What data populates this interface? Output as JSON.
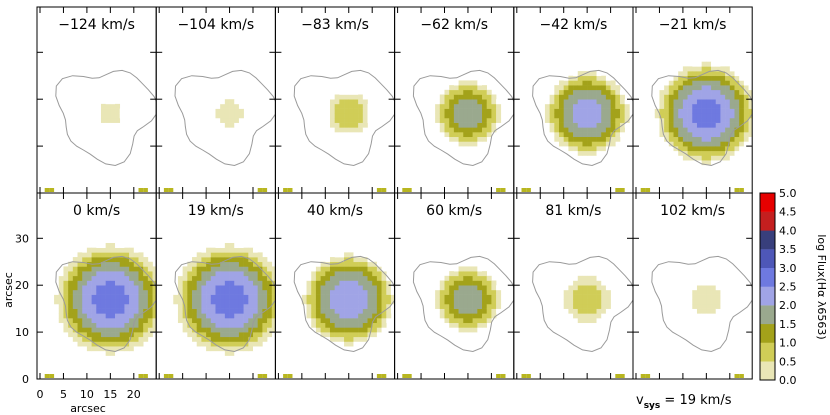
{
  "chart_data": {
    "type": "heatmap",
    "description_panels": "channel map grid, 2 rows x 6 columns",
    "panels": [
      {
        "label": "−124 km/s",
        "velocity": -124,
        "peak_log_flux": 1.0,
        "radius": 3.0
      },
      {
        "label": "−104 km/s",
        "velocity": -104,
        "peak_log_flux": 1.0,
        "radius": 4.0
      },
      {
        "label": "−83 km/s",
        "velocity": -83,
        "peak_log_flux": 1.5,
        "radius": 5.5
      },
      {
        "label": "−62 km/s",
        "velocity": -62,
        "peak_log_flux": 2.4,
        "radius": 7.5
      },
      {
        "label": "−42 km/s",
        "velocity": -42,
        "peak_log_flux": 2.9,
        "radius": 9.5
      },
      {
        "label": "−21 km/s",
        "velocity": -21,
        "peak_log_flux": 3.3,
        "radius": 11.5
      },
      {
        "label": "0 km/s",
        "velocity": 0,
        "peak_log_flux": 3.3,
        "radius": 12.5
      },
      {
        "label": "19 km/s",
        "velocity": 19,
        "peak_log_flux": 3.3,
        "radius": 12.5
      },
      {
        "label": "40 km/s",
        "velocity": 40,
        "peak_log_flux": 3.0,
        "radius": 10.5
      },
      {
        "label": "60 km/s",
        "velocity": 60,
        "peak_log_flux": 2.4,
        "radius": 7.5
      },
      {
        "label": "81 km/s",
        "velocity": 81,
        "peak_log_flux": 1.5,
        "radius": 6.0
      },
      {
        "label": "102 km/s",
        "velocity": 102,
        "peak_log_flux": 1.0,
        "radius": 4.5
      }
    ],
    "center_arcsec": [
      15,
      17
    ],
    "xlabel": "arcsec",
    "ylabel": "arcsec",
    "xlim": [
      0,
      23
    ],
    "ylim": [
      -0.5,
      38
    ],
    "xticks": [
      0,
      5,
      10,
      15,
      20
    ],
    "yticks": [
      0,
      10,
      20,
      30
    ],
    "colorbar": {
      "label": "log Flux(Hα λ6563)",
      "min": 0.0,
      "max": 5.0,
      "ticks": [
        "0.0",
        "0.5",
        "1.0",
        "1.5",
        "2.0",
        "2.5",
        "3.0",
        "3.5",
        "4.0",
        "4.5",
        "5.0"
      ],
      "colors": [
        "#ffffff",
        "#e9e6b6",
        "#d0cd57",
        "#a3a21a",
        "#9aa98e",
        "#a0a4e6",
        "#6e79e0",
        "#4e57b8",
        "#383f7c",
        "#c41f1f",
        "#e60000"
      ]
    },
    "annotation": {
      "v": "v",
      "sub": "sys",
      "text": " = 19 km/s"
    }
  }
}
